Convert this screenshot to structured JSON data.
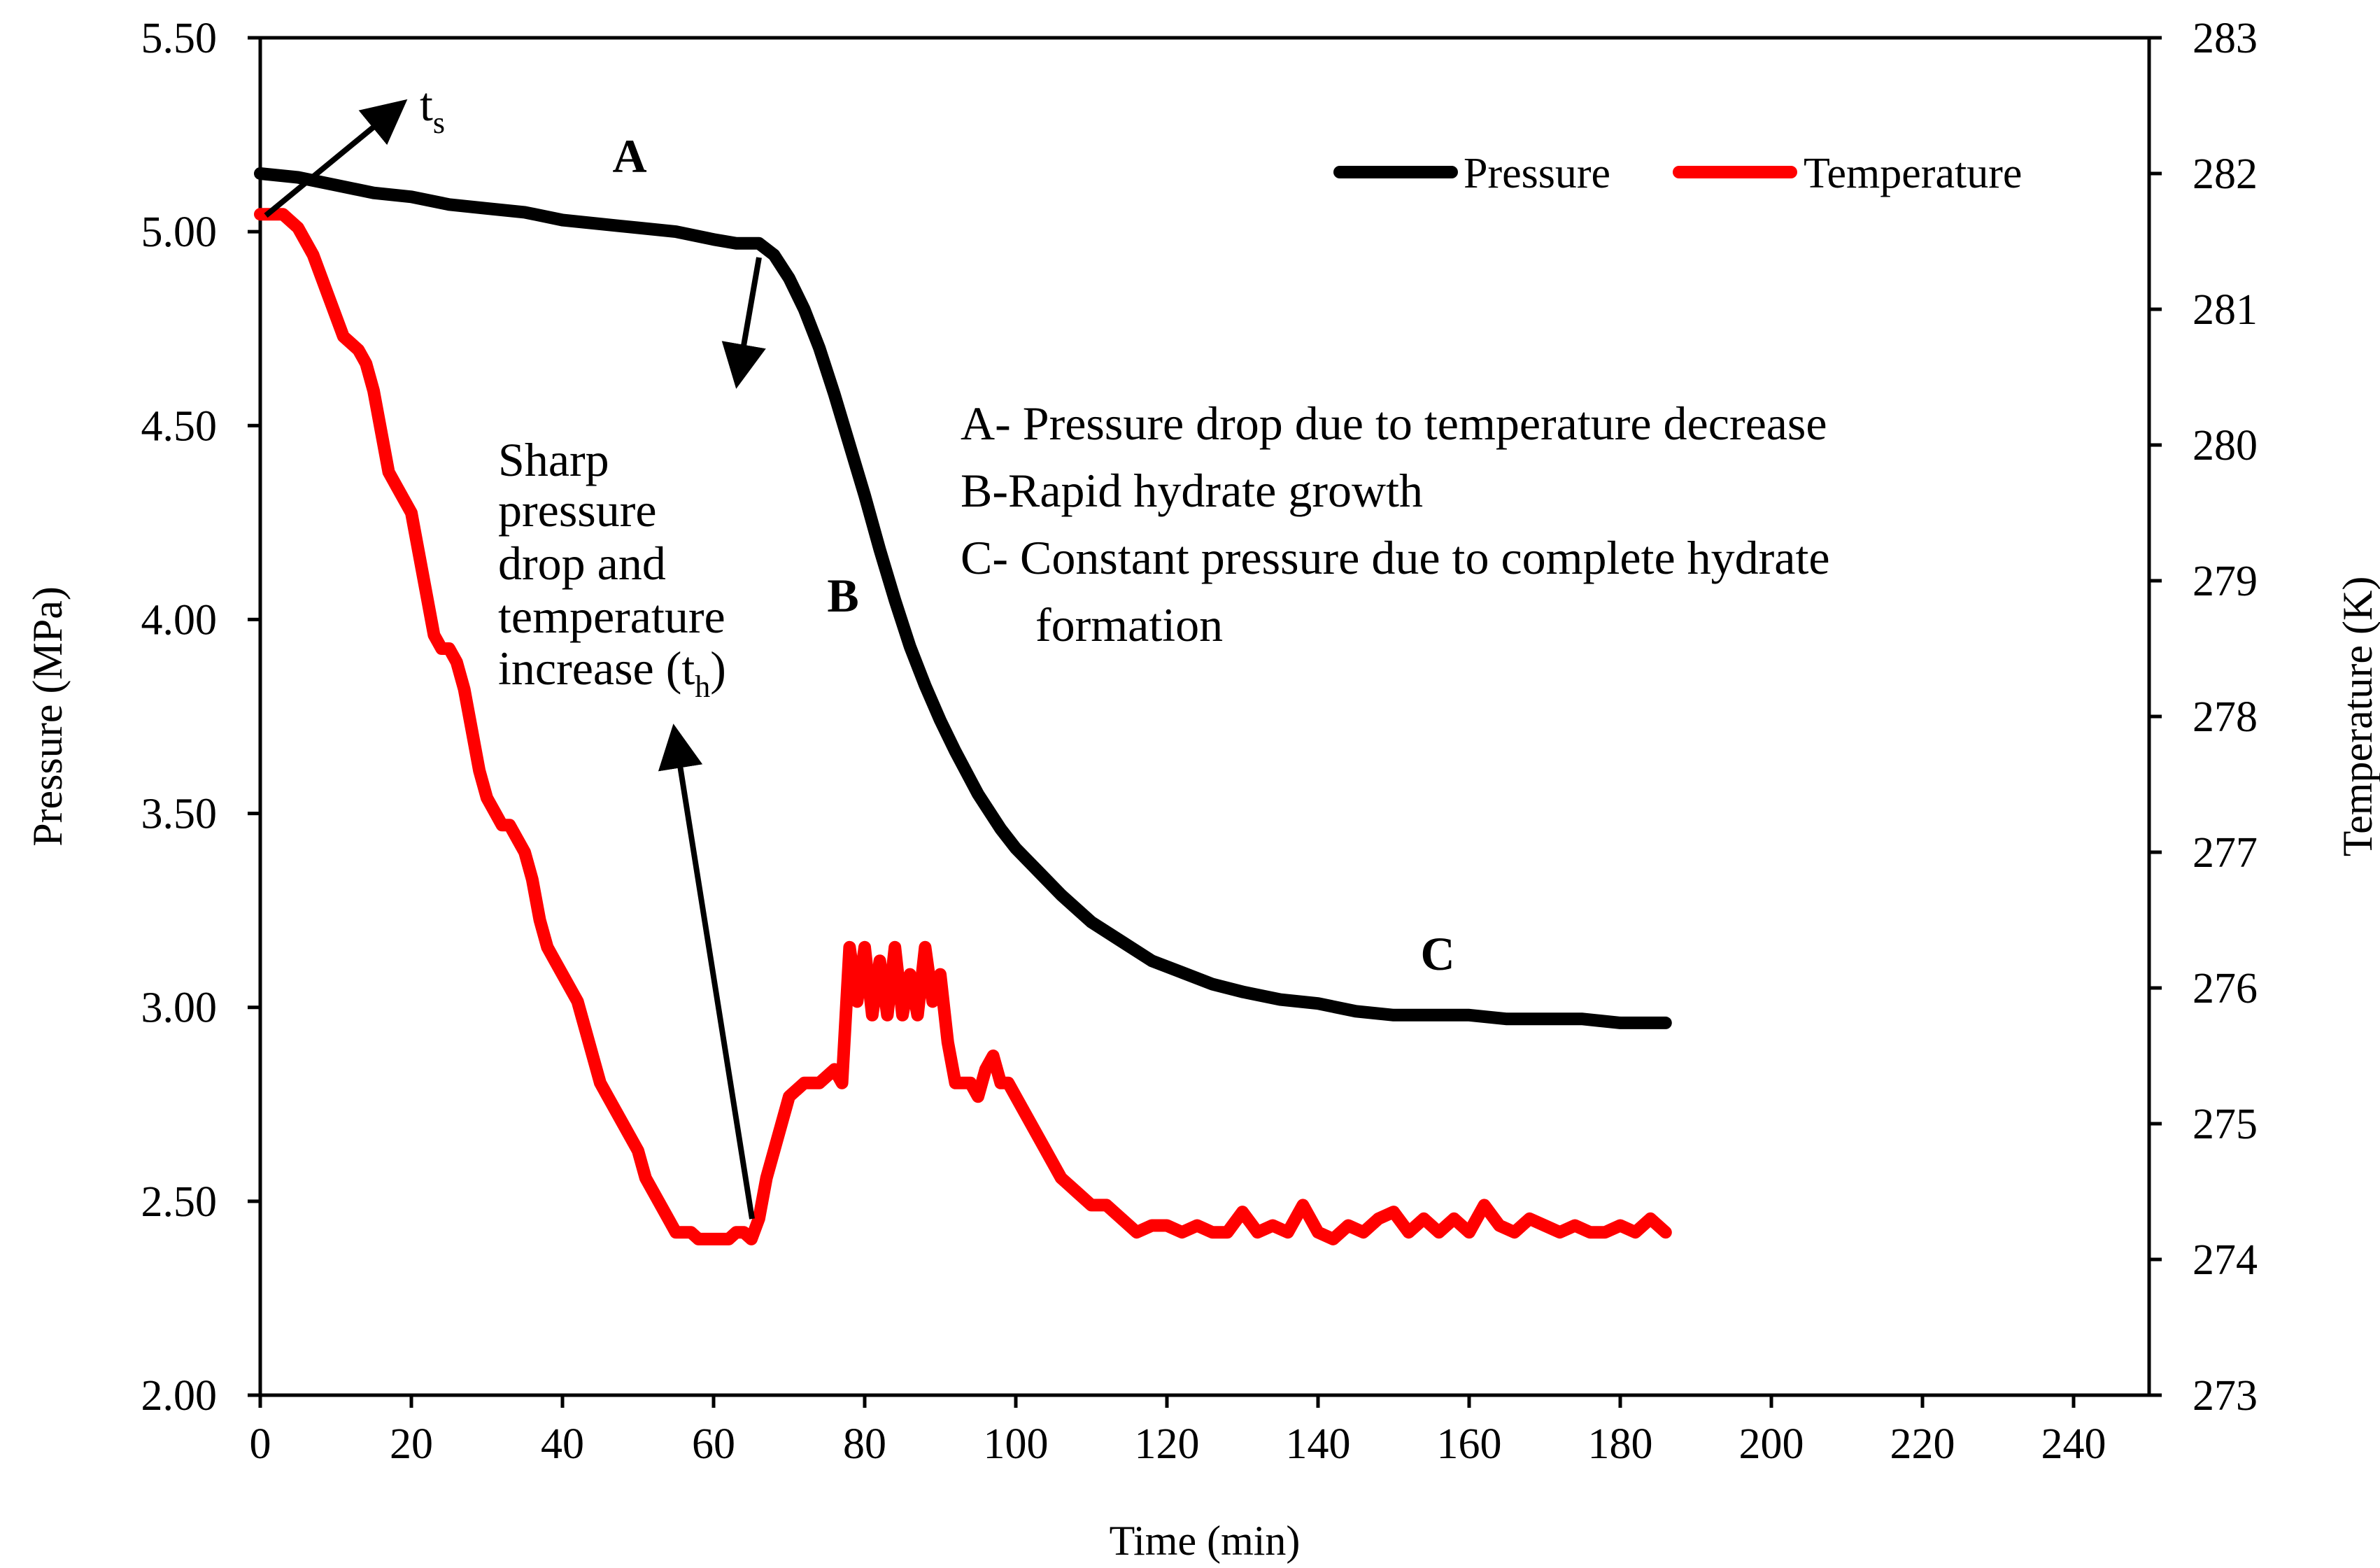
{
  "chart_data": {
    "type": "line",
    "title": "",
    "xlabel": "Time (min)",
    "ylabel": "Pressure (MPa)",
    "y2label": "Temperature (K)",
    "xlim": [
      0,
      250
    ],
    "ylim": [
      2.0,
      5.5
    ],
    "y2lim": [
      273,
      283
    ],
    "x_ticks": [
      0,
      20,
      40,
      60,
      80,
      100,
      120,
      140,
      160,
      180,
      200,
      220,
      240
    ],
    "x_tick_labels": [
      "0",
      "20",
      "40",
      "60",
      "80",
      "100",
      "120",
      "140",
      "160",
      "180",
      "200",
      "220",
      "240"
    ],
    "y_ticks": [
      2.0,
      2.5,
      3.0,
      3.5,
      4.0,
      4.5,
      5.0,
      5.5
    ],
    "y_tick_labels": [
      "2.00",
      "2.50",
      "3.00",
      "3.50",
      "4.00",
      "4.50",
      "5.00",
      "5.50"
    ],
    "y2_ticks": [
      273,
      274,
      275,
      276,
      277,
      278,
      279,
      280,
      281,
      282,
      283
    ],
    "y2_tick_labels": [
      "273",
      "274",
      "275",
      "276",
      "277",
      "278",
      "279",
      "280",
      "281",
      "282",
      "283"
    ],
    "grid": false,
    "legend": {
      "placement": "top-right",
      "entries": [
        "Pressure",
        "Temperature"
      ]
    },
    "series": [
      {
        "name": "Pressure",
        "axis": "left",
        "color": "#000000",
        "x": [
          0,
          5,
          10,
          15,
          20,
          25,
          30,
          35,
          40,
          45,
          50,
          55,
          60,
          63,
          66,
          68,
          70,
          72,
          74,
          76,
          78,
          80,
          82,
          84,
          86,
          88,
          90,
          92,
          95,
          98,
          100,
          103,
          106,
          110,
          114,
          118,
          122,
          126,
          130,
          135,
          140,
          145,
          150,
          155,
          160,
          165,
          170,
          175,
          180,
          183,
          186
        ],
        "y": [
          5.15,
          5.14,
          5.12,
          5.1,
          5.09,
          5.07,
          5.06,
          5.05,
          5.03,
          5.02,
          5.01,
          5.0,
          4.98,
          4.97,
          4.97,
          4.94,
          4.88,
          4.8,
          4.7,
          4.58,
          4.45,
          4.32,
          4.18,
          4.05,
          3.93,
          3.83,
          3.74,
          3.66,
          3.55,
          3.46,
          3.41,
          3.35,
          3.29,
          3.22,
          3.17,
          3.12,
          3.09,
          3.06,
          3.04,
          3.02,
          3.01,
          2.99,
          2.98,
          2.98,
          2.98,
          2.97,
          2.97,
          2.97,
          2.96,
          2.96,
          2.96
        ]
      },
      {
        "name": "Temperature",
        "axis": "right",
        "color": "#ff0000",
        "x": [
          0,
          3,
          5,
          7,
          9,
          11,
          13,
          14,
          15,
          16,
          17,
          18,
          19,
          20,
          21,
          22,
          23,
          24,
          25,
          26,
          27,
          28,
          29,
          30,
          31,
          32,
          33,
          34,
          35,
          36,
          37,
          38,
          39,
          40,
          41,
          42,
          43,
          44,
          45,
          46,
          47,
          48,
          49,
          50,
          51,
          52,
          53,
          54,
          55,
          56,
          57,
          58,
          59,
          60,
          61,
          62,
          63,
          64,
          65,
          66,
          67,
          68,
          69,
          70,
          72,
          74,
          76,
          77,
          78,
          79,
          80,
          81,
          82,
          83,
          84,
          85,
          86,
          87,
          88,
          89,
          90,
          91,
          92,
          93,
          94,
          95,
          96,
          97,
          98,
          99,
          100,
          102,
          104,
          106,
          108,
          110,
          112,
          114,
          116,
          118,
          120,
          122,
          124,
          126,
          128,
          130,
          132,
          134,
          136,
          138,
          140,
          142,
          144,
          146,
          148,
          150,
          152,
          154,
          156,
          158,
          160,
          162,
          164,
          166,
          168,
          170,
          172,
          174,
          176,
          178,
          180,
          182,
          184,
          186
        ],
        "y": [
          281.7,
          281.7,
          281.6,
          281.4,
          281.1,
          280.8,
          280.7,
          280.6,
          280.4,
          280.1,
          279.8,
          279.7,
          279.6,
          279.5,
          279.2,
          278.9,
          278.6,
          278.5,
          278.5,
          278.4,
          278.2,
          277.9,
          277.6,
          277.4,
          277.3,
          277.2,
          277.2,
          277.1,
          277.0,
          276.8,
          276.5,
          276.3,
          276.2,
          276.1,
          276.0,
          275.9,
          275.7,
          275.5,
          275.3,
          275.2,
          275.1,
          275.0,
          274.9,
          274.8,
          274.6,
          274.5,
          274.4,
          274.3,
          274.2,
          274.2,
          274.2,
          274.15,
          274.15,
          274.15,
          274.15,
          274.15,
          274.2,
          274.2,
          274.15,
          274.3,
          274.6,
          274.8,
          275.0,
          275.2,
          275.3,
          275.3,
          275.4,
          275.3,
          276.3,
          275.9,
          276.3,
          275.8,
          276.2,
          275.8,
          276.3,
          275.8,
          276.1,
          275.8,
          276.3,
          275.9,
          276.1,
          275.6,
          275.3,
          275.3,
          275.3,
          275.2,
          275.4,
          275.5,
          275.3,
          275.3,
          275.2,
          275.0,
          274.8,
          274.6,
          274.5,
          274.4,
          274.4,
          274.3,
          274.2,
          274.25,
          274.25,
          274.2,
          274.25,
          274.2,
          274.2,
          274.35,
          274.2,
          274.25,
          274.2,
          274.4,
          274.2,
          274.15,
          274.25,
          274.2,
          274.3,
          274.35,
          274.2,
          274.3,
          274.2,
          274.3,
          274.2,
          274.4,
          274.25,
          274.2,
          274.3,
          274.25,
          274.2,
          274.25,
          274.2,
          274.2,
          274.25,
          274.2,
          274.3,
          274.2
        ]
      }
    ],
    "annotations": {
      "ts_label": "t",
      "ts_sub": "s",
      "th_text": [
        "Sharp",
        "pressure",
        "drop and",
        "temperature"
      ],
      "th_last": "increase (",
      "th_t": "t",
      "th_sub": "h",
      "th_close": ")",
      "region_a": "A",
      "region_b": "B",
      "region_c": "C",
      "notes": [
        "A- Pressure drop due to temperature decrease",
        "B-Rapid hydrate growth",
        "C- Constant pressure due to complete hydrate",
        "formation"
      ]
    }
  }
}
